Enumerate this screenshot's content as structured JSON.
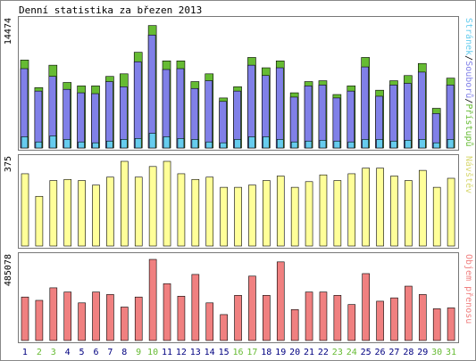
{
  "chart_data": {
    "type": "bar",
    "title": "Denní statistika za březen 2013",
    "categories": [
      "1",
      "2",
      "3",
      "4",
      "5",
      "6",
      "7",
      "8",
      "9",
      "10",
      "11",
      "12",
      "13",
      "14",
      "15",
      "16",
      "17",
      "18",
      "19",
      "20",
      "21",
      "22",
      "23",
      "24",
      "25",
      "26",
      "27",
      "28",
      "29",
      "30",
      "31"
    ],
    "weekend_days": [
      "2",
      "3",
      "9",
      "10",
      "16",
      "17",
      "23",
      "24",
      "30",
      "31"
    ],
    "panels": [
      {
        "name": "hits",
        "ylim": [
          0,
          14474
        ],
        "max_label": "14474",
        "right_label_parts": [
          "Stránek",
          "/",
          "Souborů",
          "/",
          "Přístupů"
        ],
        "series": [
          {
            "name": "Přístupů",
            "values": [
              10200,
              7000,
              9600,
              7600,
              7200,
              7200,
              8300,
              8600,
              11100,
              14200,
              10100,
              10100,
              7700,
              8600,
              5800,
              7100,
              10500,
              9300,
              10100,
              6400,
              7700,
              7800,
              6200,
              7200,
              10500,
              6700,
              7800,
              8400,
              9800,
              4600,
              8100
            ]
          },
          {
            "name": "Souborů",
            "values": [
              9200,
              6600,
              8300,
              6800,
              6400,
              6300,
              7700,
              7100,
              10000,
              13100,
              9100,
              9200,
              6900,
              7800,
              5400,
              6600,
              9600,
              8400,
              9300,
              5900,
              7200,
              7300,
              5800,
              6600,
              9400,
              6000,
              7300,
              7500,
              8800,
              4000,
              7300
            ]
          },
          {
            "name": "Stránek",
            "values": [
              1300,
              700,
              1400,
              1000,
              700,
              600,
              800,
              1000,
              1100,
              1700,
              1300,
              1100,
              1000,
              700,
              600,
              1000,
              1300,
              1300,
              1000,
              700,
              800,
              900,
              800,
              700,
              1000,
              1000,
              800,
              900,
              1000,
              600,
              1000
            ]
          }
        ]
      },
      {
        "name": "visits",
        "ylim": [
          0,
          375
        ],
        "max_label": "375",
        "right_label": "Návštěv",
        "series": [
          {
            "name": "Návštěv",
            "values": [
              320,
              220,
              290,
              295,
              290,
              270,
              305,
              375,
              305,
              352,
              375,
              320,
              295,
              305,
              260,
              260,
              270,
              290,
              310,
              260,
              285,
              315,
              290,
              320,
              345,
              345,
              310,
              290,
              335,
              260,
              300
            ]
          }
        ]
      },
      {
        "name": "kbytes",
        "ylim": [
          0,
          485078
        ],
        "max_label": "485078",
        "right_label": "Objem přenosu",
        "series": [
          {
            "name": "Objem přenosu",
            "values": [
              260000,
              240000,
              315000,
              290000,
              225000,
              290000,
              275000,
              200000,
              260000,
              485000,
              340000,
              265000,
              395000,
              225000,
              155000,
              270000,
              385000,
              270000,
              470000,
              185000,
              290000,
              290000,
              270000,
              215000,
              400000,
              235000,
              255000,
              325000,
              275000,
              190000,
              195000
            ]
          }
        ]
      }
    ],
    "colors": {
      "hits": "#66bb33",
      "files": "#8080e8",
      "pages": "#66ccee",
      "visits": "#ffff99",
      "kbytes": "#f08080",
      "weekend": "#66bb33",
      "weekday": "#000080",
      "frame": "#777777",
      "panel_bg": "#ffffff"
    }
  }
}
